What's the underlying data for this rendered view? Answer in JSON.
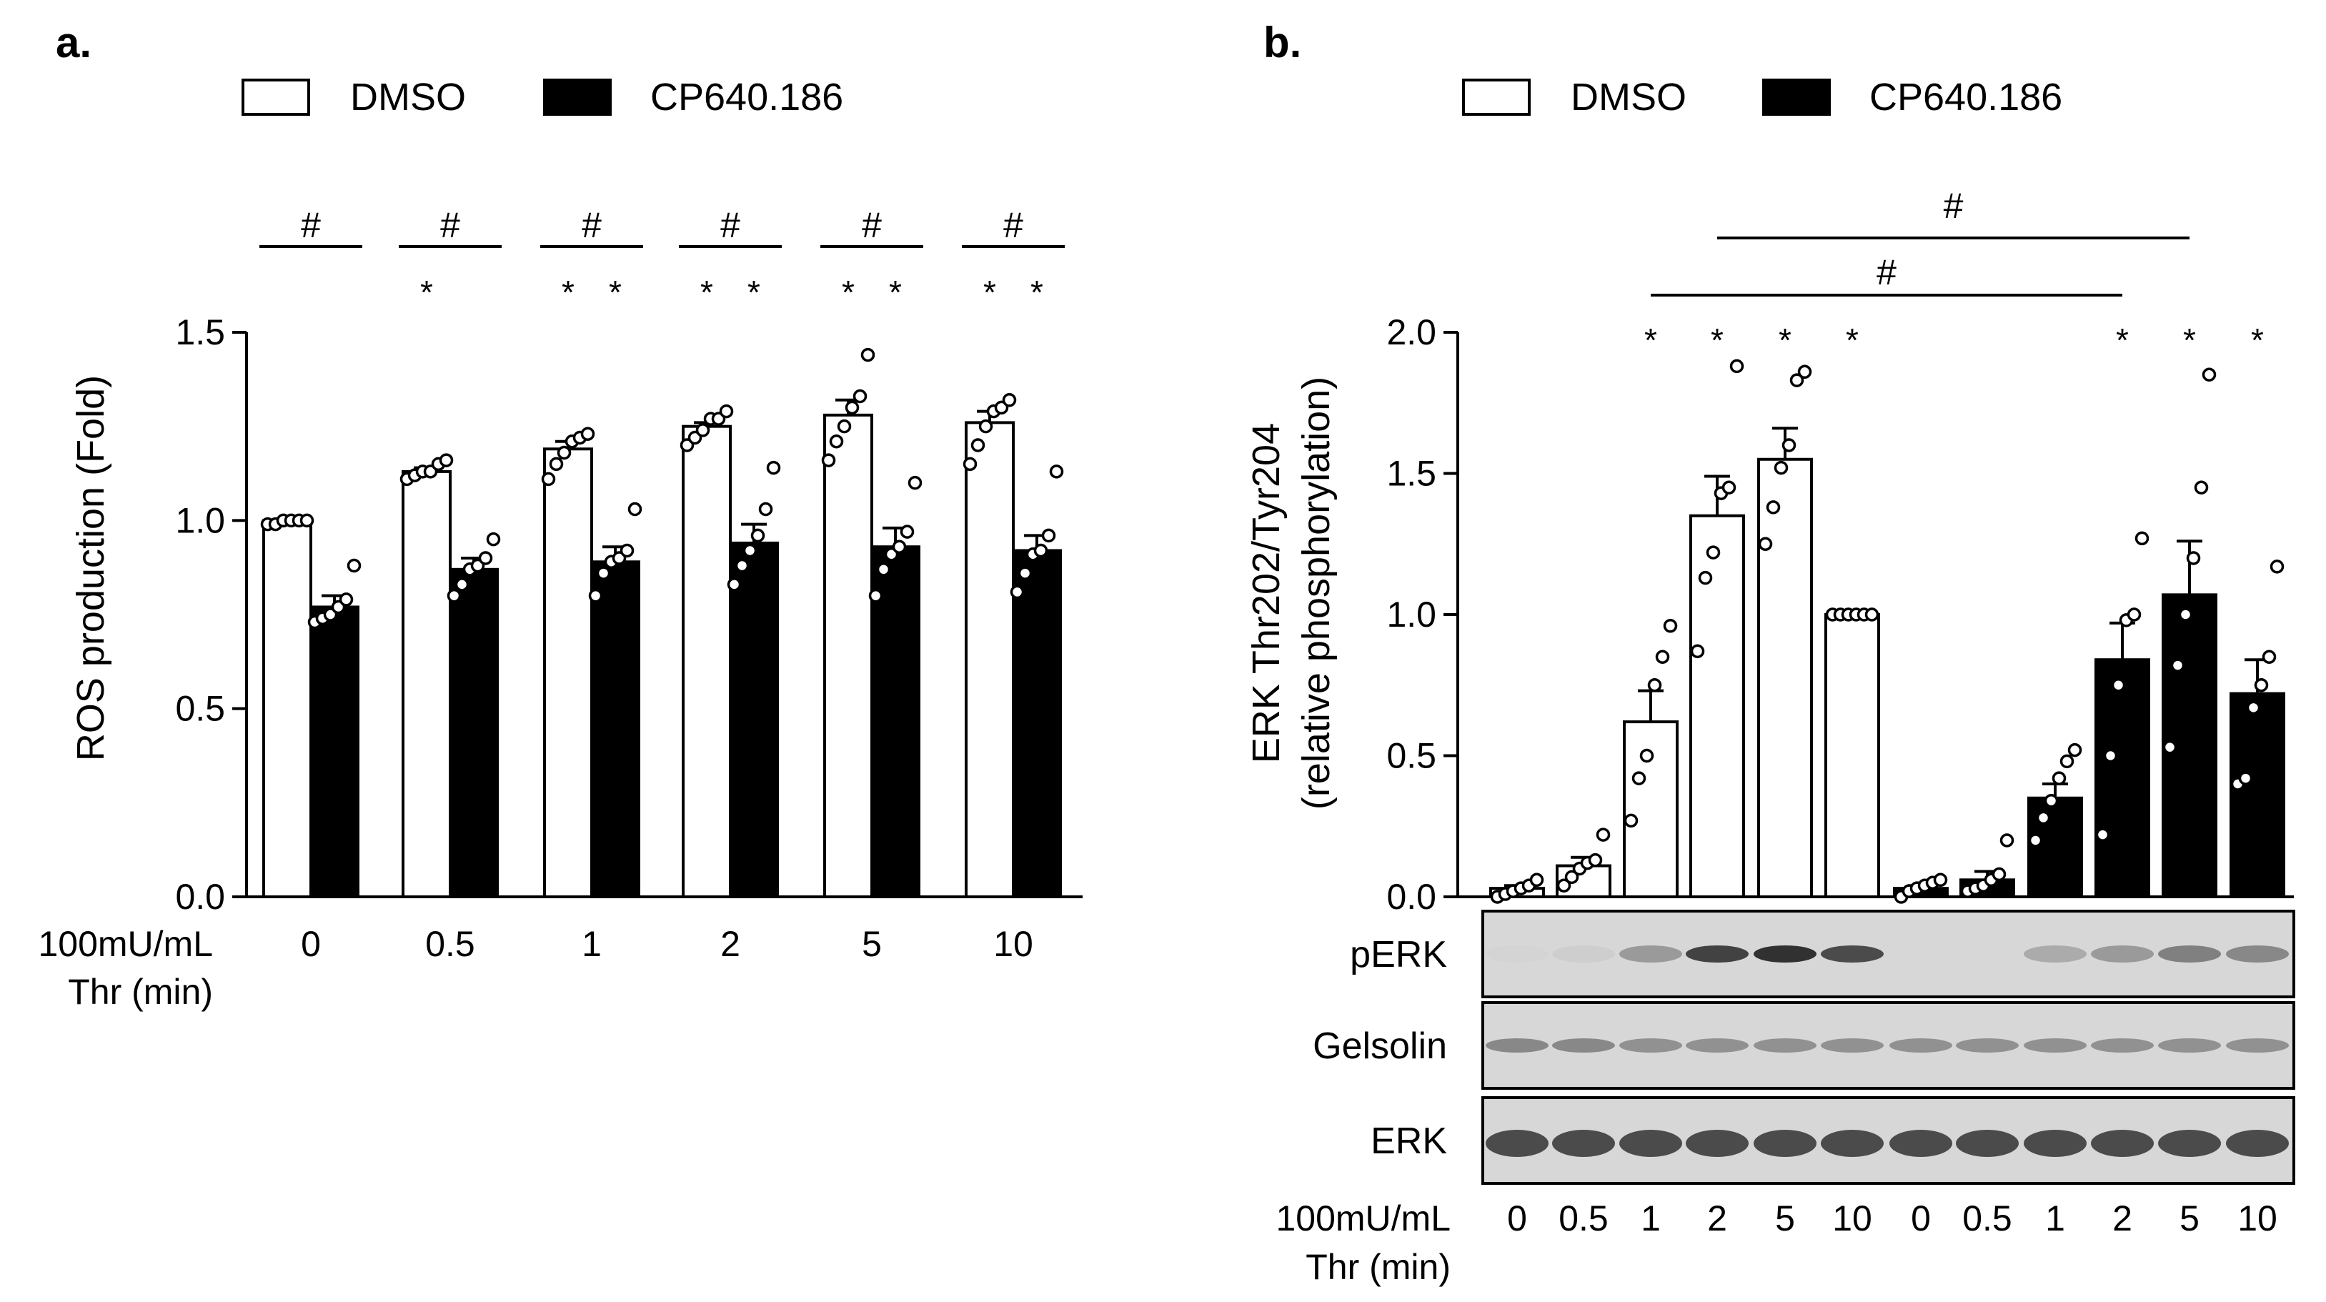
{
  "chart_data": [
    {
      "panel": "a.",
      "type": "bar",
      "ylabel": "ROS production (Fold)",
      "ylim": [
        0,
        1.5
      ],
      "yticks": [
        "0.0",
        "0.5",
        "1.0",
        "1.5"
      ],
      "xlabel_line1": "100mU/mL",
      "xlabel_line2": "Thr (min)",
      "categories": [
        "0",
        "0.5",
        "1",
        "2",
        "5",
        "10"
      ],
      "legend": [
        {
          "name": "DMSO",
          "fill": "#ffffff"
        },
        {
          "name": "CP640.186",
          "fill": "#000000"
        }
      ],
      "series": [
        {
          "name": "DMSO",
          "values": [
            1.0,
            1.13,
            1.19,
            1.25,
            1.28,
            1.26
          ],
          "sem": [
            0.0,
            0.01,
            0.02,
            0.01,
            0.04,
            0.03
          ],
          "points": [
            [
              0.99,
              0.99,
              1.0,
              1.0,
              1.0,
              1.0
            ],
            [
              1.11,
              1.12,
              1.13,
              1.13,
              1.15,
              1.16
            ],
            [
              1.11,
              1.15,
              1.18,
              1.21,
              1.22,
              1.23
            ],
            [
              1.2,
              1.22,
              1.24,
              1.27,
              1.27,
              1.29
            ],
            [
              1.16,
              1.21,
              1.25,
              1.3,
              1.33,
              1.44
            ],
            [
              1.15,
              1.2,
              1.25,
              1.29,
              1.3,
              1.32
            ]
          ]
        },
        {
          "name": "CP640.186",
          "values": [
            0.77,
            0.87,
            0.89,
            0.94,
            0.93,
            0.92
          ],
          "sem": [
            0.03,
            0.03,
            0.04,
            0.05,
            0.05,
            0.04
          ],
          "points": [
            [
              0.73,
              0.74,
              0.75,
              0.77,
              0.79,
              0.88
            ],
            [
              0.8,
              0.83,
              0.87,
              0.88,
              0.9,
              0.95
            ],
            [
              0.8,
              0.86,
              0.89,
              0.9,
              0.92,
              1.03
            ],
            [
              0.83,
              0.88,
              0.92,
              0.96,
              1.03,
              1.14
            ],
            [
              0.8,
              0.87,
              0.91,
              0.93,
              0.97,
              1.1
            ],
            [
              0.81,
              0.86,
              0.91,
              0.92,
              0.96,
              1.13
            ]
          ]
        }
      ],
      "stars_dmso": [
        "",
        "*",
        "*",
        "*",
        "*",
        "*"
      ],
      "stars_cp": [
        "",
        "",
        "*",
        "*",
        "*",
        "*"
      ],
      "hash_marks": [
        "#",
        "#",
        "#",
        "#",
        "#",
        "#"
      ]
    },
    {
      "panel": "b.",
      "type": "bar",
      "ylabel_line1": "ERK Thr202/Tyr204",
      "ylabel_line2": "(relative phosphorylation)",
      "ylim": [
        0,
        2.0
      ],
      "yticks": [
        "0.0",
        "0.5",
        "1.0",
        "1.5",
        "2.0"
      ],
      "xlabel_line1": "100mU/mL",
      "xlabel_line2": "Thr (min)",
      "categories": [
        "0",
        "0.5",
        "1",
        "2",
        "5",
        "10",
        "0",
        "0.5",
        "1",
        "2",
        "5",
        "10"
      ],
      "legend": [
        {
          "name": "DMSO",
          "fill": "#ffffff"
        },
        {
          "name": "CP640.186",
          "fill": "#000000"
        }
      ],
      "groups": [
        "DMSO",
        "DMSO",
        "DMSO",
        "DMSO",
        "DMSO",
        "DMSO",
        "CP640.186",
        "CP640.186",
        "CP640.186",
        "CP640.186",
        "CP640.186",
        "CP640.186"
      ],
      "values": [
        0.03,
        0.11,
        0.62,
        1.35,
        1.55,
        1.0,
        0.03,
        0.06,
        0.35,
        0.84,
        1.07,
        0.72
      ],
      "sem": [
        0.01,
        0.03,
        0.11,
        0.14,
        0.11,
        0.0,
        0.01,
        0.03,
        0.05,
        0.13,
        0.19,
        0.12
      ],
      "points": [
        [
          0.0,
          0.01,
          0.02,
          0.03,
          0.04,
          0.06
        ],
        [
          0.04,
          0.07,
          0.1,
          0.12,
          0.13,
          0.22
        ],
        [
          0.27,
          0.42,
          0.5,
          0.75,
          0.85,
          0.96
        ],
        [
          0.87,
          1.13,
          1.22,
          1.43,
          1.45,
          1.88
        ],
        [
          1.25,
          1.38,
          1.52,
          1.6,
          1.83,
          1.86
        ],
        [
          1.0,
          1.0,
          1.0,
          1.0,
          1.0,
          1.0
        ],
        [
          0.0,
          0.02,
          0.03,
          0.04,
          0.05,
          0.06
        ],
        [
          0.02,
          0.03,
          0.04,
          0.06,
          0.08,
          0.2
        ],
        [
          0.2,
          0.28,
          0.34,
          0.42,
          0.48,
          0.52
        ],
        [
          0.22,
          0.5,
          0.75,
          0.98,
          1.0,
          1.27
        ],
        [
          0.53,
          0.82,
          1.0,
          1.2,
          1.45,
          1.85
        ],
        [
          0.4,
          0.42,
          0.67,
          0.75,
          0.85,
          1.17
        ]
      ],
      "stars": [
        "",
        "",
        "*",
        "*",
        "*",
        "*",
        "",
        "",
        "",
        "*",
        "*",
        "*"
      ],
      "hash_marks": [
        "#",
        "#"
      ],
      "blots": [
        {
          "label": "pERK",
          "intensities": [
            0.02,
            0.05,
            0.35,
            0.85,
            0.95,
            0.8,
            0.0,
            0.0,
            0.25,
            0.35,
            0.5,
            0.45
          ]
        },
        {
          "label": "Gelsolin",
          "intensities": [
            0.45,
            0.45,
            0.4,
            0.4,
            0.4,
            0.4,
            0.4,
            0.4,
            0.4,
            0.4,
            0.4,
            0.4
          ]
        },
        {
          "label": "ERK",
          "intensities": [
            0.8,
            0.8,
            0.8,
            0.8,
            0.8,
            0.8,
            0.8,
            0.8,
            0.8,
            0.8,
            0.8,
            0.8
          ]
        }
      ]
    }
  ]
}
